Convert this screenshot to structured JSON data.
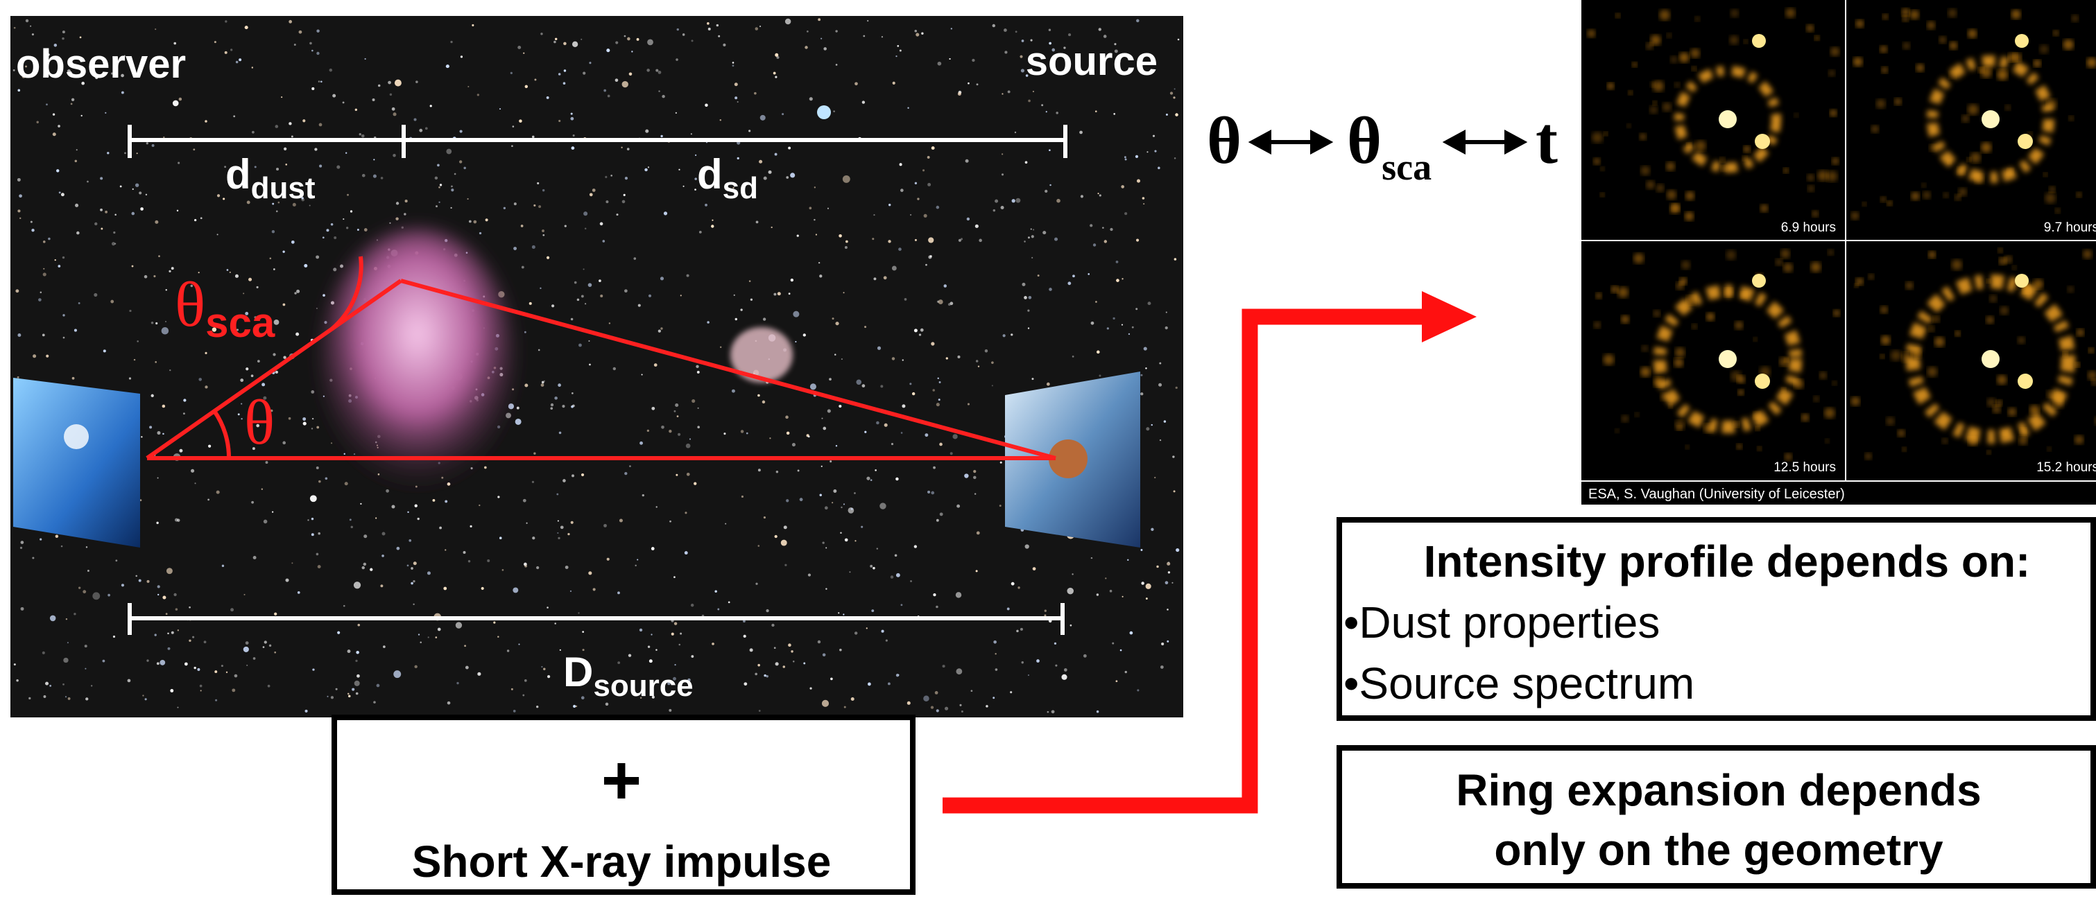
{
  "diagram": {
    "observer_label": "observer",
    "source_label": "source",
    "d_dust": {
      "main": "d",
      "sub": "dust"
    },
    "d_sd": {
      "main": "d",
      "sub": "sd"
    },
    "theta_sca": {
      "main": "θ",
      "sub": "sca"
    },
    "theta": "θ",
    "d_source": {
      "main": "D",
      "sub": "source"
    }
  },
  "relation": {
    "theta": "θ",
    "theta_sca": {
      "main": "θ",
      "sub": "sca"
    },
    "t": "t"
  },
  "image": {
    "panels": [
      {
        "label": "6.9 hours"
      },
      {
        "label": "9.7 hours"
      },
      {
        "label": "12.5 hours"
      },
      {
        "label": "15.2 hours"
      }
    ],
    "credit": "ESA, S. Vaughan (University of Leicester)"
  },
  "intensity_box": {
    "title": "Intensity profile depends on:",
    "items": [
      "•Dust properties",
      "•Source spectrum"
    ]
  },
  "ring_box": {
    "lines": [
      "Ring expansion depends",
      "only on the geometry"
    ]
  },
  "impulse_box": {
    "symbol": "+",
    "label": "Short X-ray impulse"
  }
}
